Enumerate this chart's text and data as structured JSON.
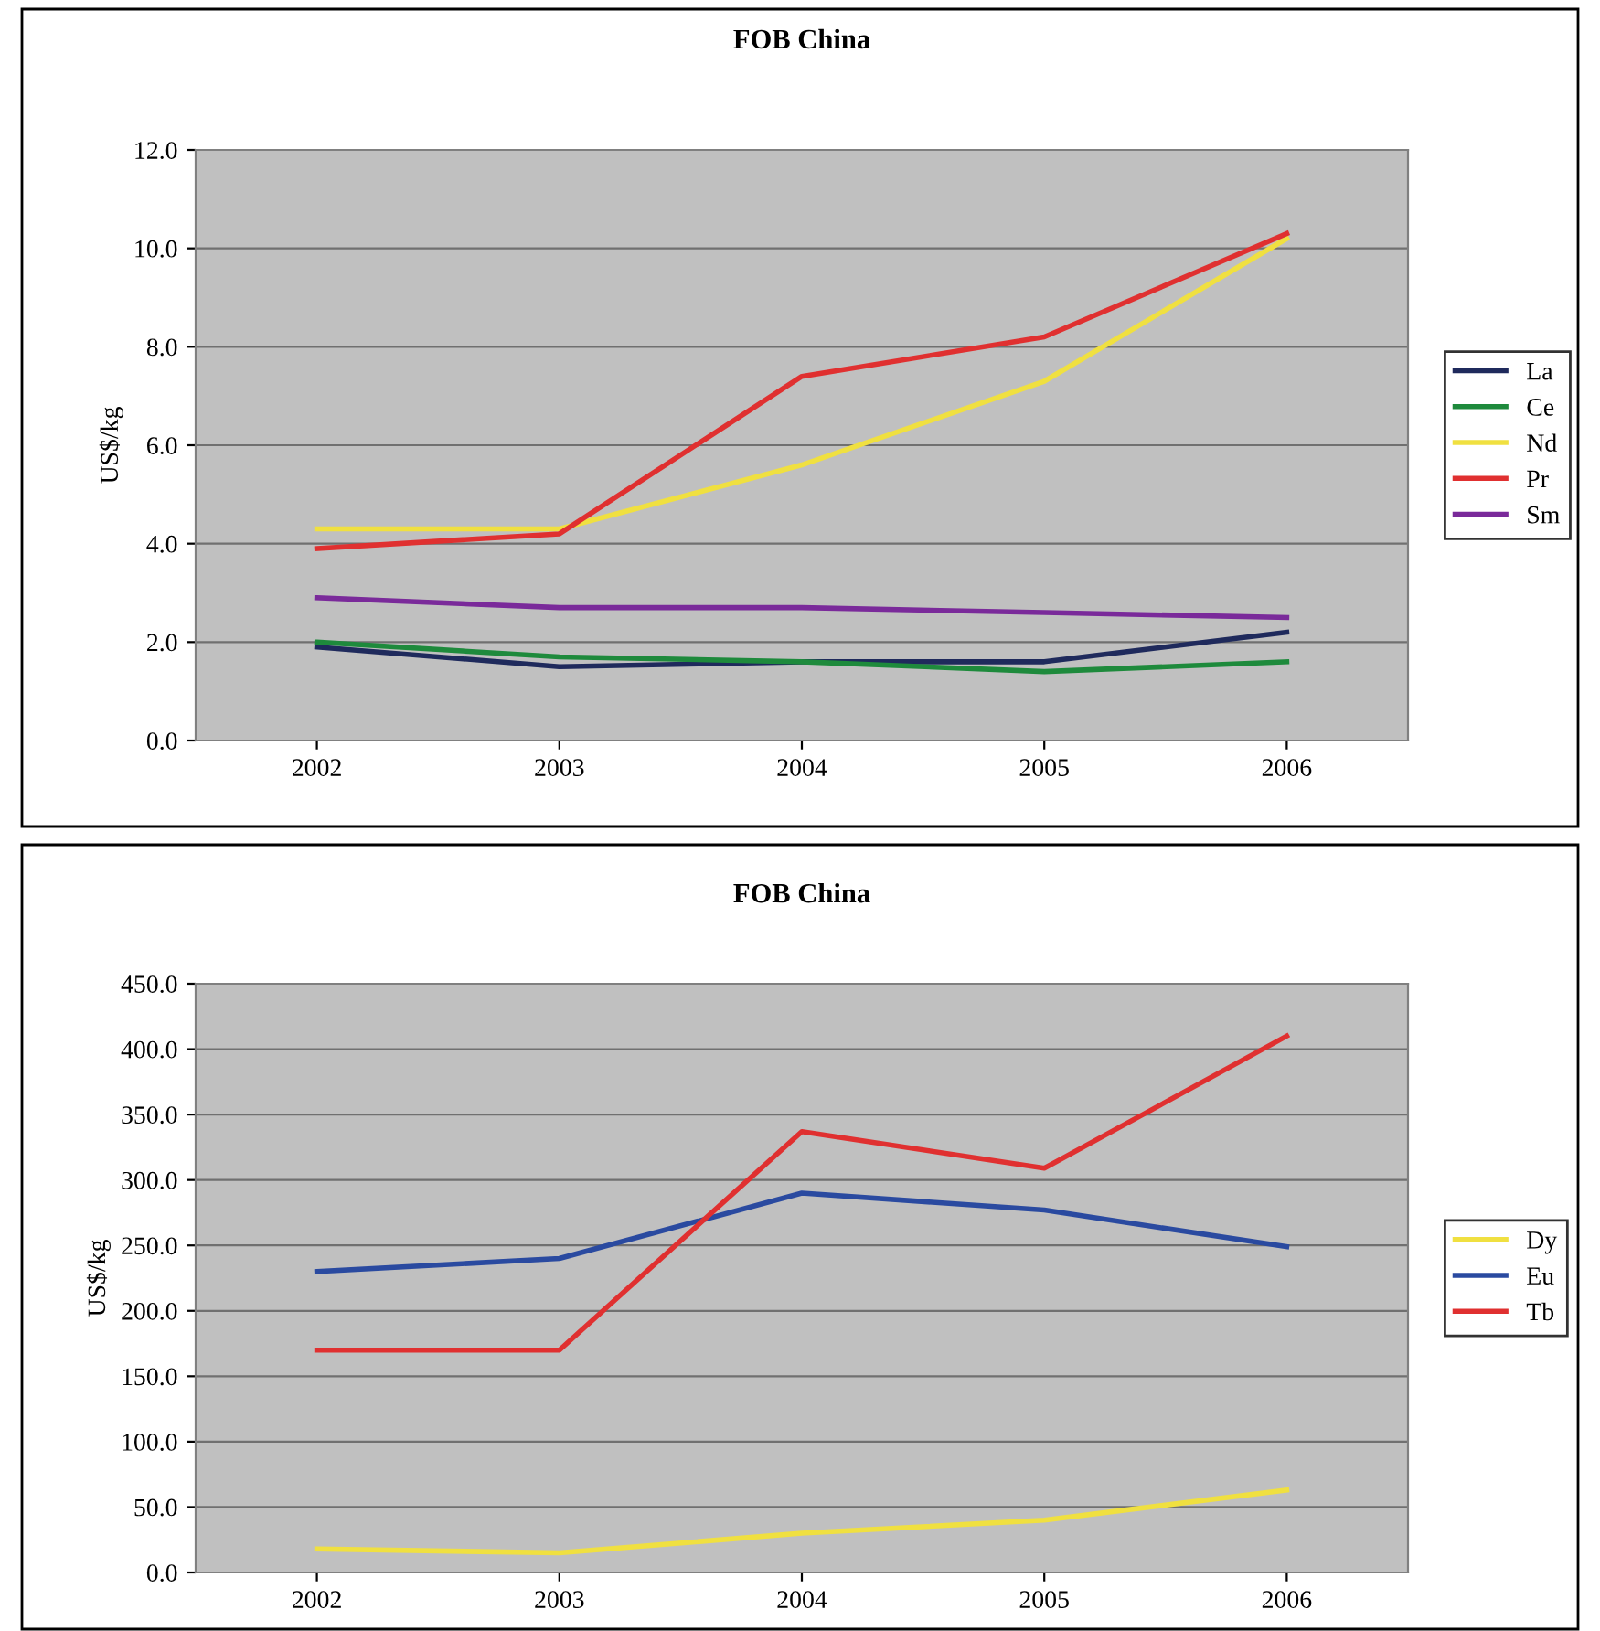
{
  "chart_data": [
    {
      "type": "line",
      "title": "FOB China",
      "ylabel": "US$/kg",
      "categories": [
        "2002",
        "2003",
        "2004",
        "2005",
        "2006"
      ],
      "series": [
        {
          "name": "La",
          "color": "#1f2a5c",
          "values": [
            1.9,
            1.5,
            1.6,
            1.6,
            2.2
          ]
        },
        {
          "name": "Ce",
          "color": "#1e8a3c",
          "values": [
            2.0,
            1.7,
            1.6,
            1.4,
            1.6
          ]
        },
        {
          "name": "Nd",
          "color": "#f0e040",
          "values": [
            4.3,
            4.3,
            5.6,
            7.3,
            10.2
          ]
        },
        {
          "name": "Pr",
          "color": "#e03030",
          "values": [
            3.9,
            4.2,
            7.4,
            8.2,
            10.3
          ]
        },
        {
          "name": "Sm",
          "color": "#7a2a9a",
          "values": [
            2.9,
            2.7,
            2.7,
            2.6,
            2.5
          ]
        }
      ],
      "ylim": [
        0,
        12
      ],
      "yticks": [
        {
          "value": 0,
          "label": "0.0"
        },
        {
          "value": 2,
          "label": "2.0"
        },
        {
          "value": 4,
          "label": "4.0"
        },
        {
          "value": 6,
          "label": "6.0"
        },
        {
          "value": 8,
          "label": "8.0"
        },
        {
          "value": 10,
          "label": "10.0"
        },
        {
          "value": 12,
          "label": "12.0"
        }
      ],
      "grid": "y",
      "legend": "right",
      "marker": "none",
      "line_style": "solid"
    },
    {
      "type": "line",
      "title": "FOB China",
      "ylabel": "US$/kg",
      "categories": [
        "2002",
        "2003",
        "2004",
        "2005",
        "2006"
      ],
      "series": [
        {
          "name": "Dy",
          "color": "#f0e040",
          "values": [
            18,
            15,
            30,
            40,
            63
          ]
        },
        {
          "name": "Eu",
          "color": "#2a4aa0",
          "values": [
            230,
            240,
            290,
            277,
            249
          ]
        },
        {
          "name": "Tb",
          "color": "#e03030",
          "values": [
            170,
            170,
            337,
            309,
            410
          ]
        }
      ],
      "ylim": [
        0,
        450
      ],
      "yticks": [
        {
          "value": 0,
          "label": "0.0"
        },
        {
          "value": 50,
          "label": "50.0"
        },
        {
          "value": 100,
          "label": "100.0"
        },
        {
          "value": 150,
          "label": "150.0"
        },
        {
          "value": 200,
          "label": "200.0"
        },
        {
          "value": 250,
          "label": "250.0"
        },
        {
          "value": 300,
          "label": "300.0"
        },
        {
          "value": 350,
          "label": "350.0"
        },
        {
          "value": 400,
          "label": "400.0"
        },
        {
          "value": 450,
          "label": "450.0"
        }
      ],
      "grid": "y",
      "legend": "right",
      "marker": "none",
      "line_style": "solid"
    }
  ]
}
